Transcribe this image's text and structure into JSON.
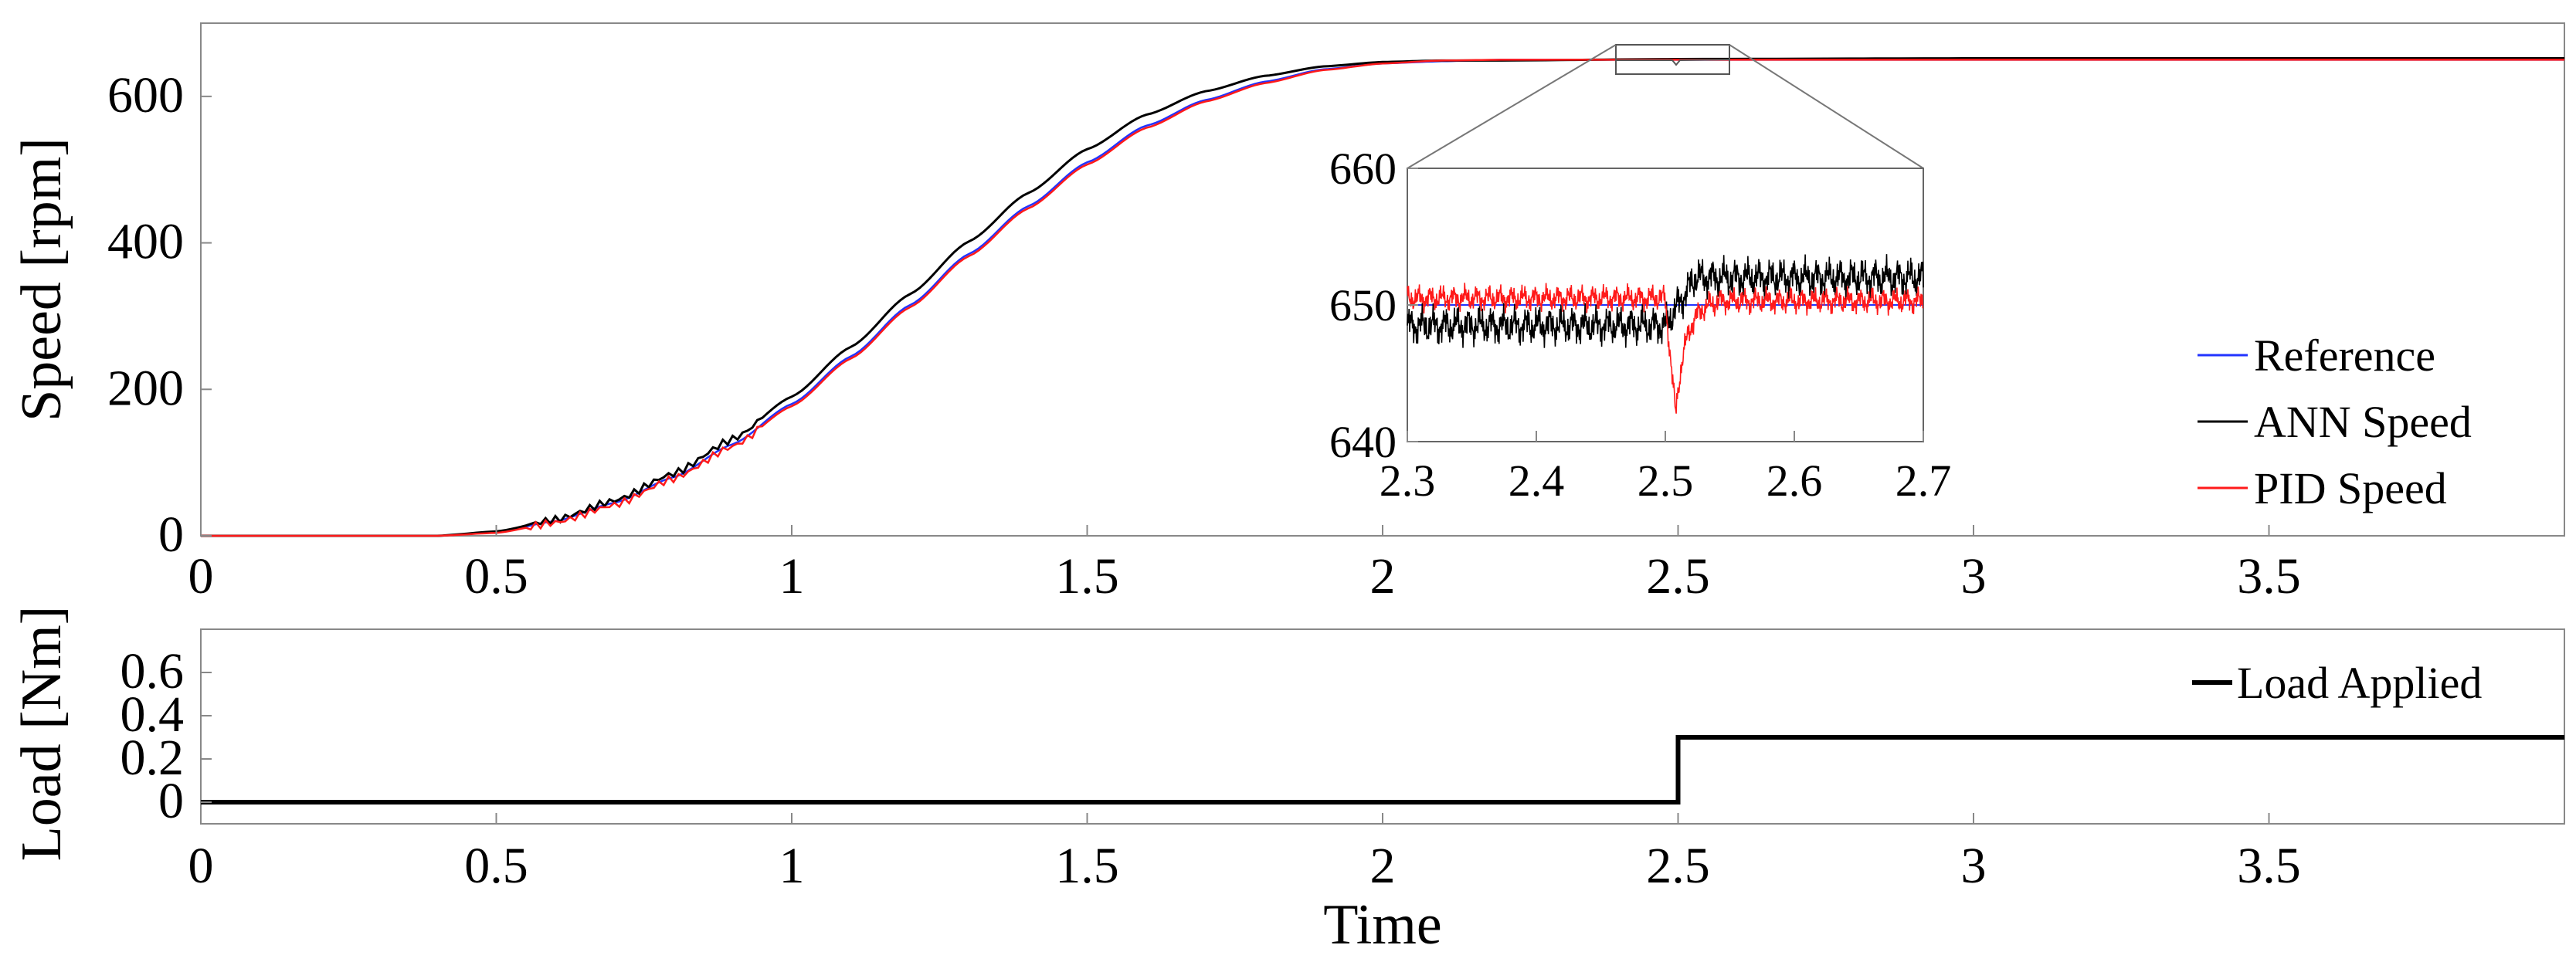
{
  "chart_data": [
    {
      "type": "line",
      "panel": "speed",
      "xlabel": "",
      "ylabel": "Speed [rpm]",
      "xlim": [
        0,
        4
      ],
      "ylim": [
        0,
        700
      ],
      "xticks": [
        "0",
        "0.5",
        "1",
        "1.5",
        "2",
        "2.5",
        "3",
        "3.5"
      ],
      "xtick_values": [
        0,
        0.5,
        1,
        1.5,
        2,
        2.5,
        3,
        3.5
      ],
      "yticks": [
        "0",
        "200",
        "400",
        "600"
      ],
      "ytick_values": [
        0,
        200,
        400,
        600
      ],
      "grid": false,
      "legend_position": "lower-right",
      "series": [
        {
          "name": "Reference",
          "color": "#2233ff",
          "x": [
            0,
            0.4,
            0.5,
            0.6,
            0.7,
            0.8,
            0.9,
            1.0,
            1.1,
            1.2,
            1.3,
            1.4,
            1.5,
            1.6,
            1.7,
            1.8,
            1.9,
            2.0,
            2.1,
            2.2,
            2.5,
            3.0,
            3.5,
            4.0
          ],
          "y": [
            0,
            0,
            5,
            20,
            45,
            80,
            125,
            180,
            245,
            315,
            385,
            450,
            510,
            560,
            595,
            620,
            637,
            645,
            648,
            650,
            650,
            650,
            650,
            650
          ]
        },
        {
          "name": "ANN Speed",
          "color": "#000000",
          "x": [
            0,
            0.4,
            0.5,
            0.6,
            0.7,
            0.8,
            0.9,
            1.0,
            1.1,
            1.2,
            1.3,
            1.4,
            1.5,
            1.6,
            1.7,
            1.8,
            1.9,
            2.0,
            2.1,
            2.2,
            2.5,
            3.0,
            3.5,
            4.0
          ],
          "y": [
            0,
            0,
            6,
            22,
            48,
            85,
            132,
            190,
            258,
            330,
            402,
            468,
            528,
            575,
            607,
            628,
            641,
            647,
            649,
            649,
            651,
            652,
            652,
            652
          ]
        },
        {
          "name": "PID Speed",
          "color": "#ff1a1a",
          "x": [
            0,
            0.4,
            0.5,
            0.6,
            0.7,
            0.8,
            0.9,
            1.0,
            1.1,
            1.2,
            1.3,
            1.4,
            1.5,
            1.6,
            1.7,
            1.8,
            1.9,
            2.0,
            2.1,
            2.2,
            2.5,
            3.0,
            3.5,
            4.0
          ],
          "y": [
            0,
            0,
            4,
            18,
            42,
            78,
            122,
            177,
            242,
            312,
            382,
            447,
            507,
            557,
            593,
            618,
            636,
            645,
            649,
            650,
            650,
            650,
            650,
            650
          ]
        }
      ],
      "inset": {
        "xlim": [
          2.3,
          2.7
        ],
        "ylim": [
          640,
          660
        ],
        "xticks": [
          "2.3",
          "2.4",
          "2.5",
          "2.6",
          "2.7"
        ],
        "xtick_values": [
          2.3,
          2.4,
          2.5,
          2.6,
          2.7
        ],
        "yticks": [
          "640",
          "650",
          "660"
        ],
        "ytick_values": [
          640,
          650,
          660
        ],
        "series": [
          {
            "name": "Reference",
            "color": "#2233ff",
            "x": [
              2.3,
              2.7
            ],
            "y": [
              650,
              650
            ]
          },
          {
            "name": "ANN Speed",
            "color": "#000000",
            "base_before": 648.5,
            "base_after": 652,
            "step_time": 2.5,
            "ripple": 1.2
          },
          {
            "name": "PID Speed",
            "color": "#ff1a1a",
            "base_before": 650.5,
            "base_after": 650.3,
            "step_time": 2.5,
            "dip_min": 642,
            "ripple": 0.8
          }
        ]
      }
    },
    {
      "type": "line",
      "panel": "load",
      "xlabel": "Time",
      "ylabel": "Load [Nm]",
      "xlim": [
        0,
        4
      ],
      "ylim": [
        -0.1,
        0.8
      ],
      "xticks": [
        "0",
        "0.5",
        "1",
        "1.5",
        "2",
        "2.5",
        "3",
        "3.5"
      ],
      "xtick_values": [
        0,
        0.5,
        1,
        1.5,
        2,
        2.5,
        3,
        3.5
      ],
      "yticks": [
        "0",
        "0.2",
        "0.4",
        "0.6"
      ],
      "ytick_values": [
        0,
        0.2,
        0.4,
        0.6
      ],
      "grid": false,
      "legend_position": "top-right",
      "series": [
        {
          "name": "Load Applied",
          "color": "#000000",
          "x": [
            0,
            2.5,
            2.5,
            4.0
          ],
          "y": [
            0,
            0,
            0.3,
            0.3
          ]
        }
      ]
    }
  ]
}
